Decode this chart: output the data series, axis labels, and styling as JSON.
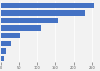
{
  "values": [
    256,
    231,
    158,
    109,
    52,
    28,
    13,
    9
  ],
  "bar_color": "#4472c4",
  "xlim": [
    0,
    270
  ],
  "xtick_values": [
    0,
    50,
    100,
    150,
    200,
    250
  ],
  "background_color": "#f2f2f2",
  "plot_bg_color": "#f2f2f2",
  "figsize": [
    1.0,
    0.71
  ],
  "dpi": 100,
  "bar_height": 0.72
}
